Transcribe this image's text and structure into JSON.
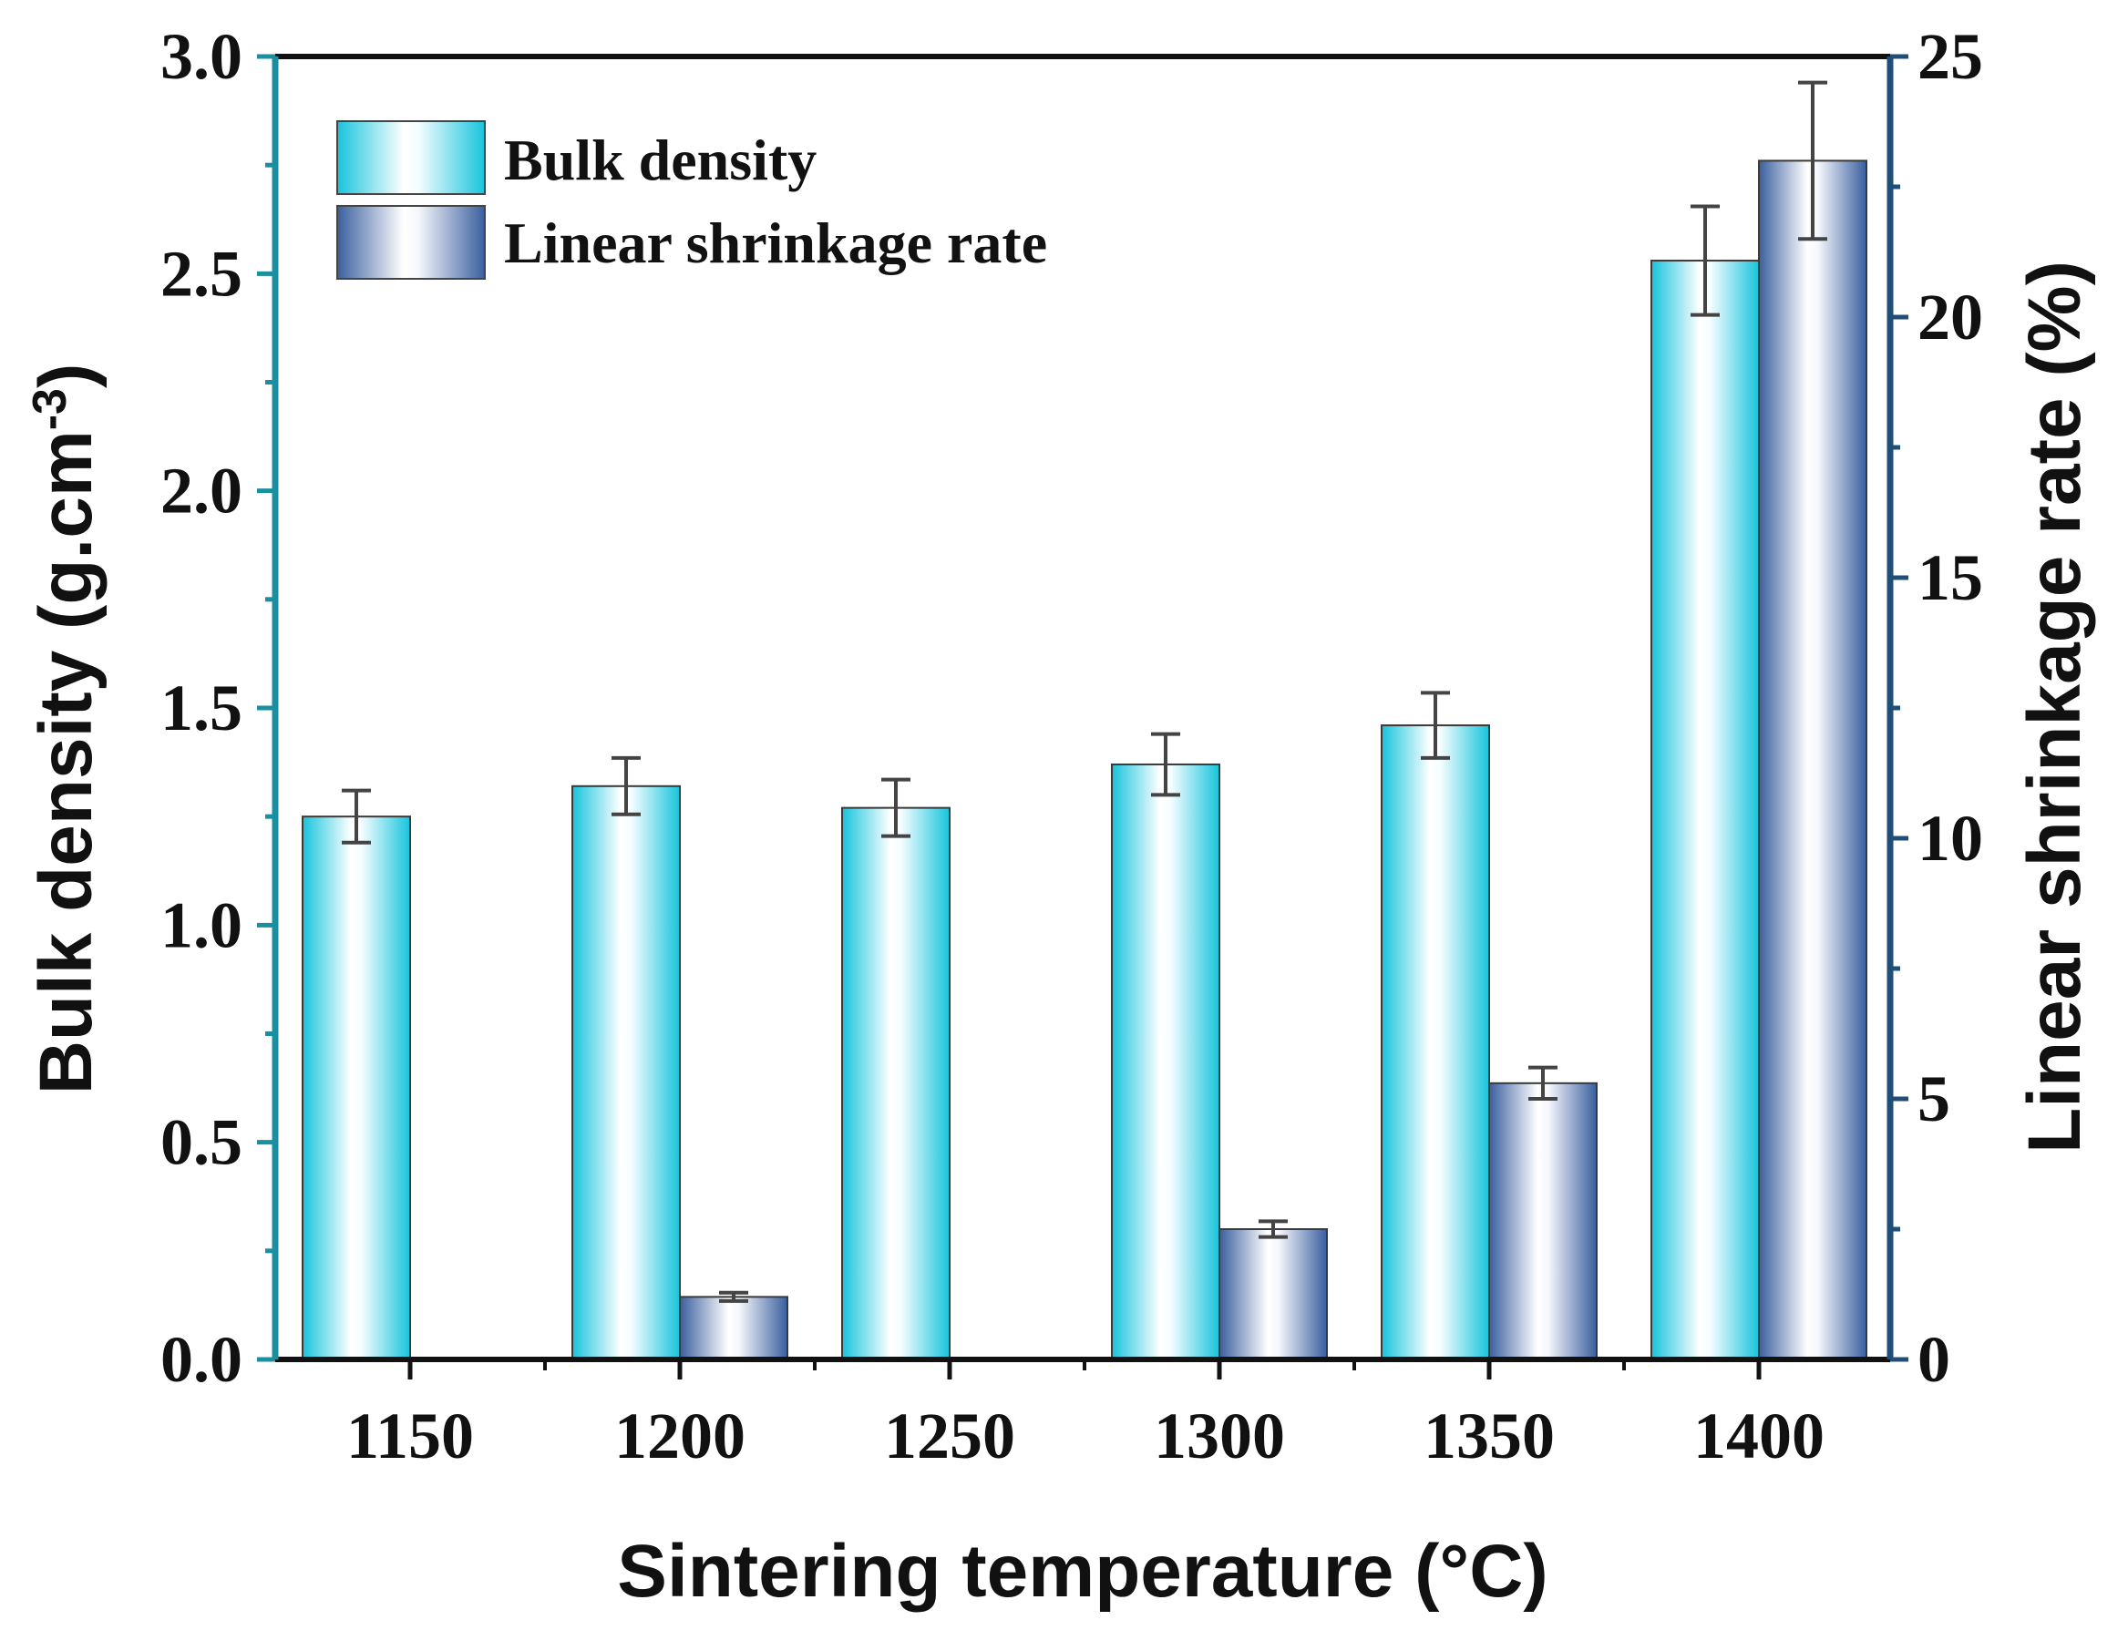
{
  "chart_data": {
    "type": "bar",
    "categories": [
      "1150",
      "1200",
      "1250",
      "1300",
      "1350",
      "1400"
    ],
    "series": [
      {
        "name": "Bulk density",
        "axis": "left",
        "values": [
          1.25,
          1.32,
          1.27,
          1.37,
          1.46,
          2.53
        ],
        "errors": [
          0.06,
          0.065,
          0.065,
          0.07,
          0.075,
          0.125
        ]
      },
      {
        "name": "Linear shrinkage rate",
        "axis": "right",
        "values": [
          null,
          1.2,
          null,
          2.5,
          5.3,
          23.0
        ],
        "errors": [
          null,
          0.08,
          null,
          0.15,
          0.3,
          1.5
        ]
      }
    ],
    "xlabel": "Sintering temperature (°C)",
    "ylabel_left": {
      "main": "Bulk density (g.cm",
      "sup": "-3",
      "close": ")"
    },
    "ylabel_right": "Linear shrinkage rate (%)",
    "ylim_left": [
      0,
      3.0
    ],
    "ylim_right": [
      0,
      25
    ],
    "yticks_left": [
      "0.0",
      "0.5",
      "1.0",
      "1.5",
      "2.0",
      "2.5",
      "3.0"
    ],
    "yticks_right": [
      "0",
      "5",
      "10",
      "15",
      "20",
      "25"
    ],
    "legend_position": "top-left",
    "colors": {
      "left_axis": "#1a8fa0",
      "right_axis": "#1f4e79",
      "bulk_edge": "#17c4dc",
      "shrink_edge": "#3a5f9e",
      "error_bar": "#444444"
    }
  }
}
